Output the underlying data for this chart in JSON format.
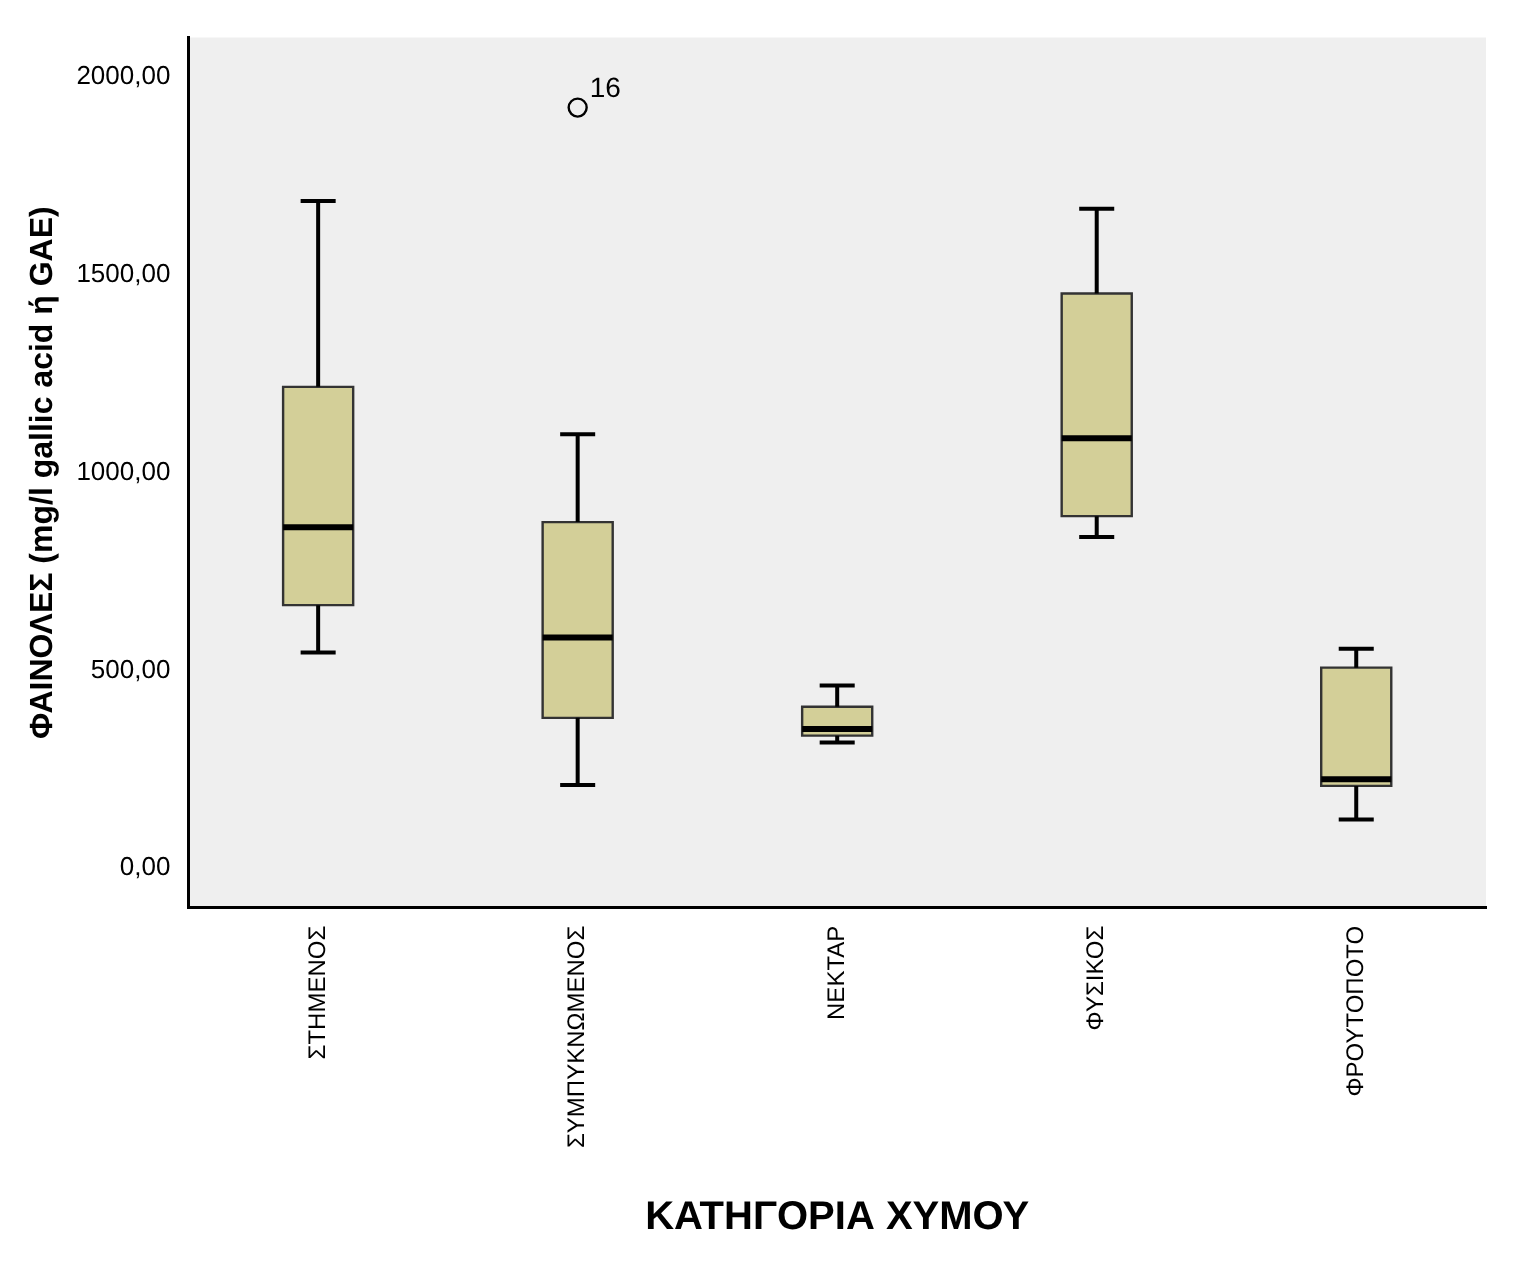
{
  "chart_data": {
    "type": "box",
    "xlabel": "ΚΑΤΗΓΟΡΙΑ ΧΥΜΟΥ",
    "ylabel": "ΦΑΙΝΟΛΕΣ (mg/l gallic acid ή GAE)",
    "categories": [
      "ΣΤΗΜΕΝΟΣ",
      "ΣΥΜΠΥΚΝΩΜΕΝΟΣ",
      "ΝΕΚΤΑΡ",
      "ΦΥΣΙΚΟΣ",
      "ΦΡΟΥΤΟΠΟΤΟ"
    ],
    "color": "#d3cf98",
    "boxes": [
      {
        "low": 545,
        "q1": 665,
        "median": 862,
        "q3": 1217,
        "high": 1687
      },
      {
        "low": 210,
        "q1": 380,
        "median": 583,
        "q3": 875,
        "high": 1097,
        "outliers": [
          1923
        ]
      },
      {
        "low": 318,
        "q1": 335,
        "median": 352,
        "q3": 408,
        "high": 462
      },
      {
        "low": 837,
        "q1": 890,
        "median": 1087,
        "q3": 1453,
        "high": 1667
      },
      {
        "low": 123,
        "q1": 208,
        "median": 225,
        "q3": 507,
        "high": 555
      }
    ],
    "annotations": [
      "16"
    ],
    "ylim": [
      -100,
      2100
    ],
    "yticks": [
      {
        "value": 0,
        "label": "0,00"
      },
      {
        "value": 500,
        "label": "500,00"
      },
      {
        "value": 1000,
        "label": "1000,00"
      },
      {
        "value": 1500,
        "label": "1500,00"
      },
      {
        "value": 2000,
        "label": "2000,00"
      }
    ],
    "grid": false,
    "legend": false
  }
}
